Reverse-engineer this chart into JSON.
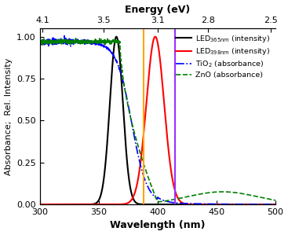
{
  "xmin": 300,
  "xmax": 500,
  "ymin": 0.0,
  "ymax": 1.05,
  "ylim_display": [
    0.0,
    1.0
  ],
  "xlabel": "Wavelength (nm)",
  "ylabel": "Absorbance;  Rel. Intensity",
  "top_xlabel": "Energy (eV)",
  "xticks": [
    300,
    350,
    400,
    450,
    500
  ],
  "yticks": [
    0.0,
    0.25,
    0.5,
    0.75,
    1.0
  ],
  "top_xticks_eV": [
    4.1,
    3.5,
    3.1,
    2.8,
    2.5
  ],
  "vline_orange": 388,
  "vline_purple": 415,
  "legend_labels": [
    "LED$_{365nm}$ (intensity)",
    "LED$_{398nm}$ (intensity)",
    "TiO$_2$ (absorbance)",
    "ZnO (absorbance)"
  ],
  "line_colors": [
    "black",
    "red",
    "blue",
    "green"
  ],
  "line_styles": [
    "-",
    "-",
    "-.",
    "--"
  ],
  "vline_colors": [
    "#FFA500",
    "#9B30FF"
  ],
  "background_color": "#ffffff",
  "figsize": [
    3.67,
    2.99
  ],
  "dpi": 100
}
